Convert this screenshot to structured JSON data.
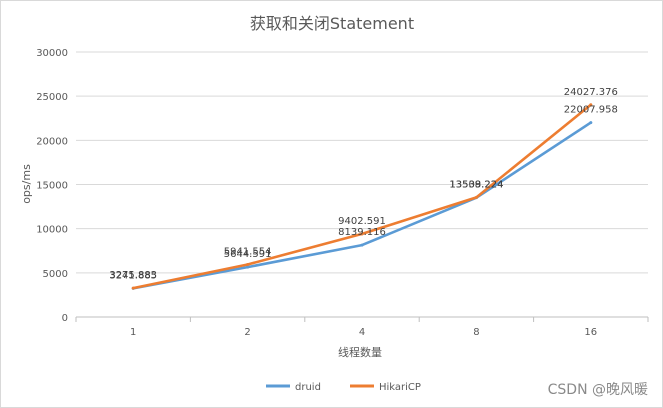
{
  "chart_data": {
    "type": "line",
    "title": "获取和关闭Statement",
    "xlabel": "线程数量",
    "ylabel": "ops/ms",
    "categories": [
      "1",
      "2",
      "4",
      "8",
      "16"
    ],
    "ylim": [
      0,
      30000
    ],
    "yticks": [
      "0",
      "5000",
      "10000",
      "15000",
      "20000",
      "25000",
      "30000"
    ],
    "grid": true,
    "legend_position": "bottom",
    "series": [
      {
        "name": "druid",
        "color": "#5b9bd5",
        "values": [
          3241.885,
          5644.591,
          8139.116,
          13509.224,
          22007.958
        ],
        "labels": [
          "3241.885",
          "5644.591",
          "8139.116",
          "13509.224",
          "22007.958"
        ]
      },
      {
        "name": "HikariCP",
        "color": "#ed7d31",
        "values": [
          3275.883,
          5941.554,
          9402.591,
          13538.224,
          24027.376
        ],
        "labels": [
          "3275.883",
          "5941.554",
          "9402.591",
          "13538.224",
          "24027.376"
        ]
      }
    ]
  },
  "watermark": "CSDN @晚风暖"
}
